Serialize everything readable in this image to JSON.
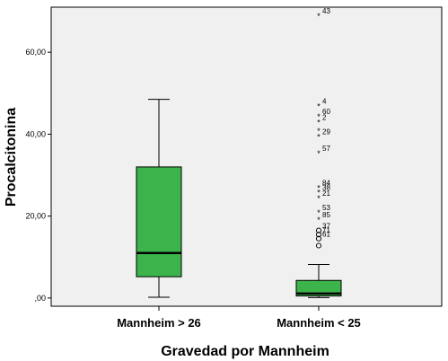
{
  "chart_data": {
    "type": "boxplot",
    "xlabel": "Gravedad por Mannheim",
    "ylabel": "Procalcitonina",
    "ylim": [
      -2,
      71
    ],
    "y_ticks": [
      0,
      20,
      40,
      60
    ],
    "y_tick_labels": [
      ",00",
      "20,00",
      "40,00",
      "60,00"
    ],
    "grid": false,
    "box_color": "#3cb44b",
    "background_color": "#f0f0f0",
    "groups": [
      {
        "label": "Mannheim > 26",
        "min": 0.2,
        "q1": 5.2,
        "median": 11.0,
        "q3": 32.0,
        "max": 48.5,
        "outliers": []
      },
      {
        "label": "Mannheim < 25",
        "min": 0.1,
        "q1": 0.5,
        "median": 1.1,
        "q3": 4.3,
        "max": 8.2,
        "outliers": [
          {
            "label": "43",
            "value": 69.0,
            "marker": "star"
          },
          {
            "label": "4",
            "value": 47.0,
            "marker": "star"
          },
          {
            "label": "60",
            "value": 44.5,
            "marker": "star"
          },
          {
            "label": "2",
            "value": 43.0,
            "marker": "star"
          },
          {
            "label": "",
            "value": 41.0,
            "marker": "star"
          },
          {
            "label": "29",
            "value": 39.5,
            "marker": "star"
          },
          {
            "label": "57",
            "value": 35.5,
            "marker": "star"
          },
          {
            "label": "84",
            "value": 27.0,
            "marker": "star"
          },
          {
            "label": "38",
            "value": 26.0,
            "marker": "star"
          },
          {
            "label": "21",
            "value": 24.5,
            "marker": "star"
          },
          {
            "label": "53",
            "value": 21.0,
            "marker": "star"
          },
          {
            "label": "85",
            "value": 19.3,
            "marker": "star"
          },
          {
            "label": "37",
            "value": 16.5,
            "marker": "circle"
          },
          {
            "label": "71",
            "value": 15.5,
            "marker": "circle"
          },
          {
            "label": "61",
            "value": 14.5,
            "marker": "circle"
          },
          {
            "label": "",
            "value": 12.8,
            "marker": "circle"
          }
        ]
      }
    ]
  }
}
